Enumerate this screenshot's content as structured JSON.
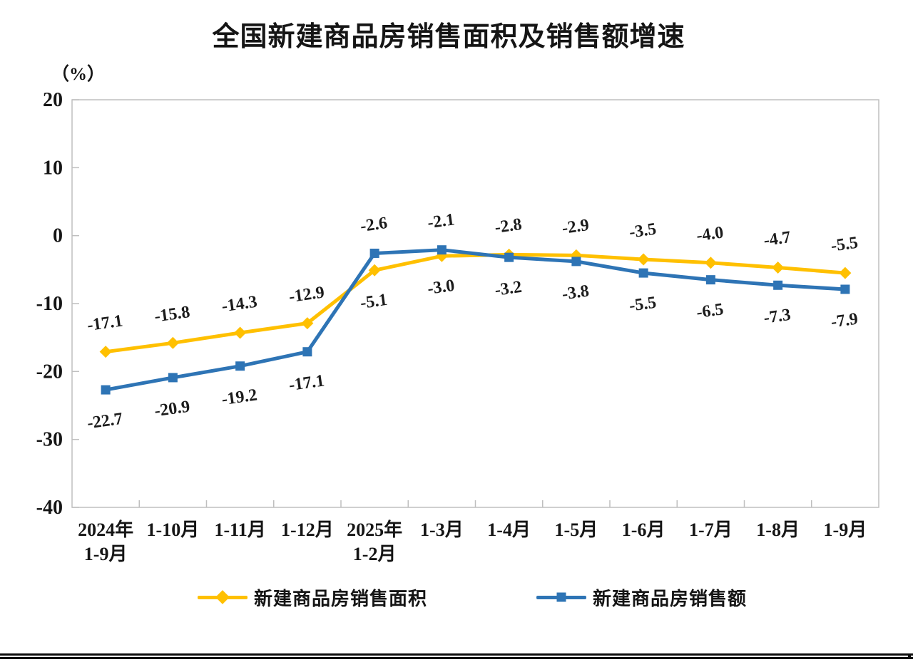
{
  "page": {
    "background": "#ffffff",
    "text_color": "#151515"
  },
  "chart_data": {
    "type": "line",
    "title": "全国新建商品房销售面积及销售额增速",
    "unit_label": "（%）",
    "categories": [
      "2024年\n1-9月",
      "1-10月",
      "1-11月",
      "1-12月",
      "2025年\n1-2月",
      "1-3月",
      "1-4月",
      "1-5月",
      "1-6月",
      "1-7月",
      "1-8月",
      "1-9月"
    ],
    "ylim": [
      -40,
      20
    ],
    "yticks": [
      20,
      10,
      0,
      -10,
      -20,
      -30,
      -40
    ],
    "grid": false,
    "legend_position": "bottom",
    "axis_color": "#BFBFBF",
    "series": [
      {
        "name": "新建商品房销售面积",
        "color": "#FFC000",
        "marker": "diamond",
        "values": [
          -17.1,
          -15.8,
          -14.3,
          -12.9,
          -5.1,
          -3.0,
          -2.8,
          -2.9,
          -3.5,
          -4.0,
          -4.7,
          -5.5
        ],
        "labels": [
          "-17.1",
          "-15.8",
          "-14.3",
          "-12.9",
          "-5.1",
          "-3.0",
          "-2.8",
          "-2.9",
          "-3.5",
          "-4.0",
          "-4.7",
          "-5.5"
        ],
        "label_side": [
          "above",
          "above",
          "above",
          "above",
          "below",
          "below",
          "above",
          "above",
          "above",
          "above",
          "above",
          "above"
        ]
      },
      {
        "name": "新建商品房销售额",
        "color": "#2E74B5",
        "marker": "square",
        "values": [
          -22.7,
          -20.9,
          -19.2,
          -17.1,
          -2.6,
          -2.1,
          -3.2,
          -3.8,
          -5.5,
          -6.5,
          -7.3,
          -7.9
        ],
        "labels": [
          "-22.7",
          "-20.9",
          "-19.2",
          "-17.1",
          "-2.6",
          "-2.1",
          "-3.2",
          "-3.8",
          "-5.5",
          "-6.5",
          "-7.3",
          "-7.9"
        ],
        "label_side": [
          "below",
          "below",
          "below",
          "below",
          "above",
          "above",
          "below",
          "below",
          "below",
          "below",
          "below",
          "below"
        ]
      }
    ]
  }
}
